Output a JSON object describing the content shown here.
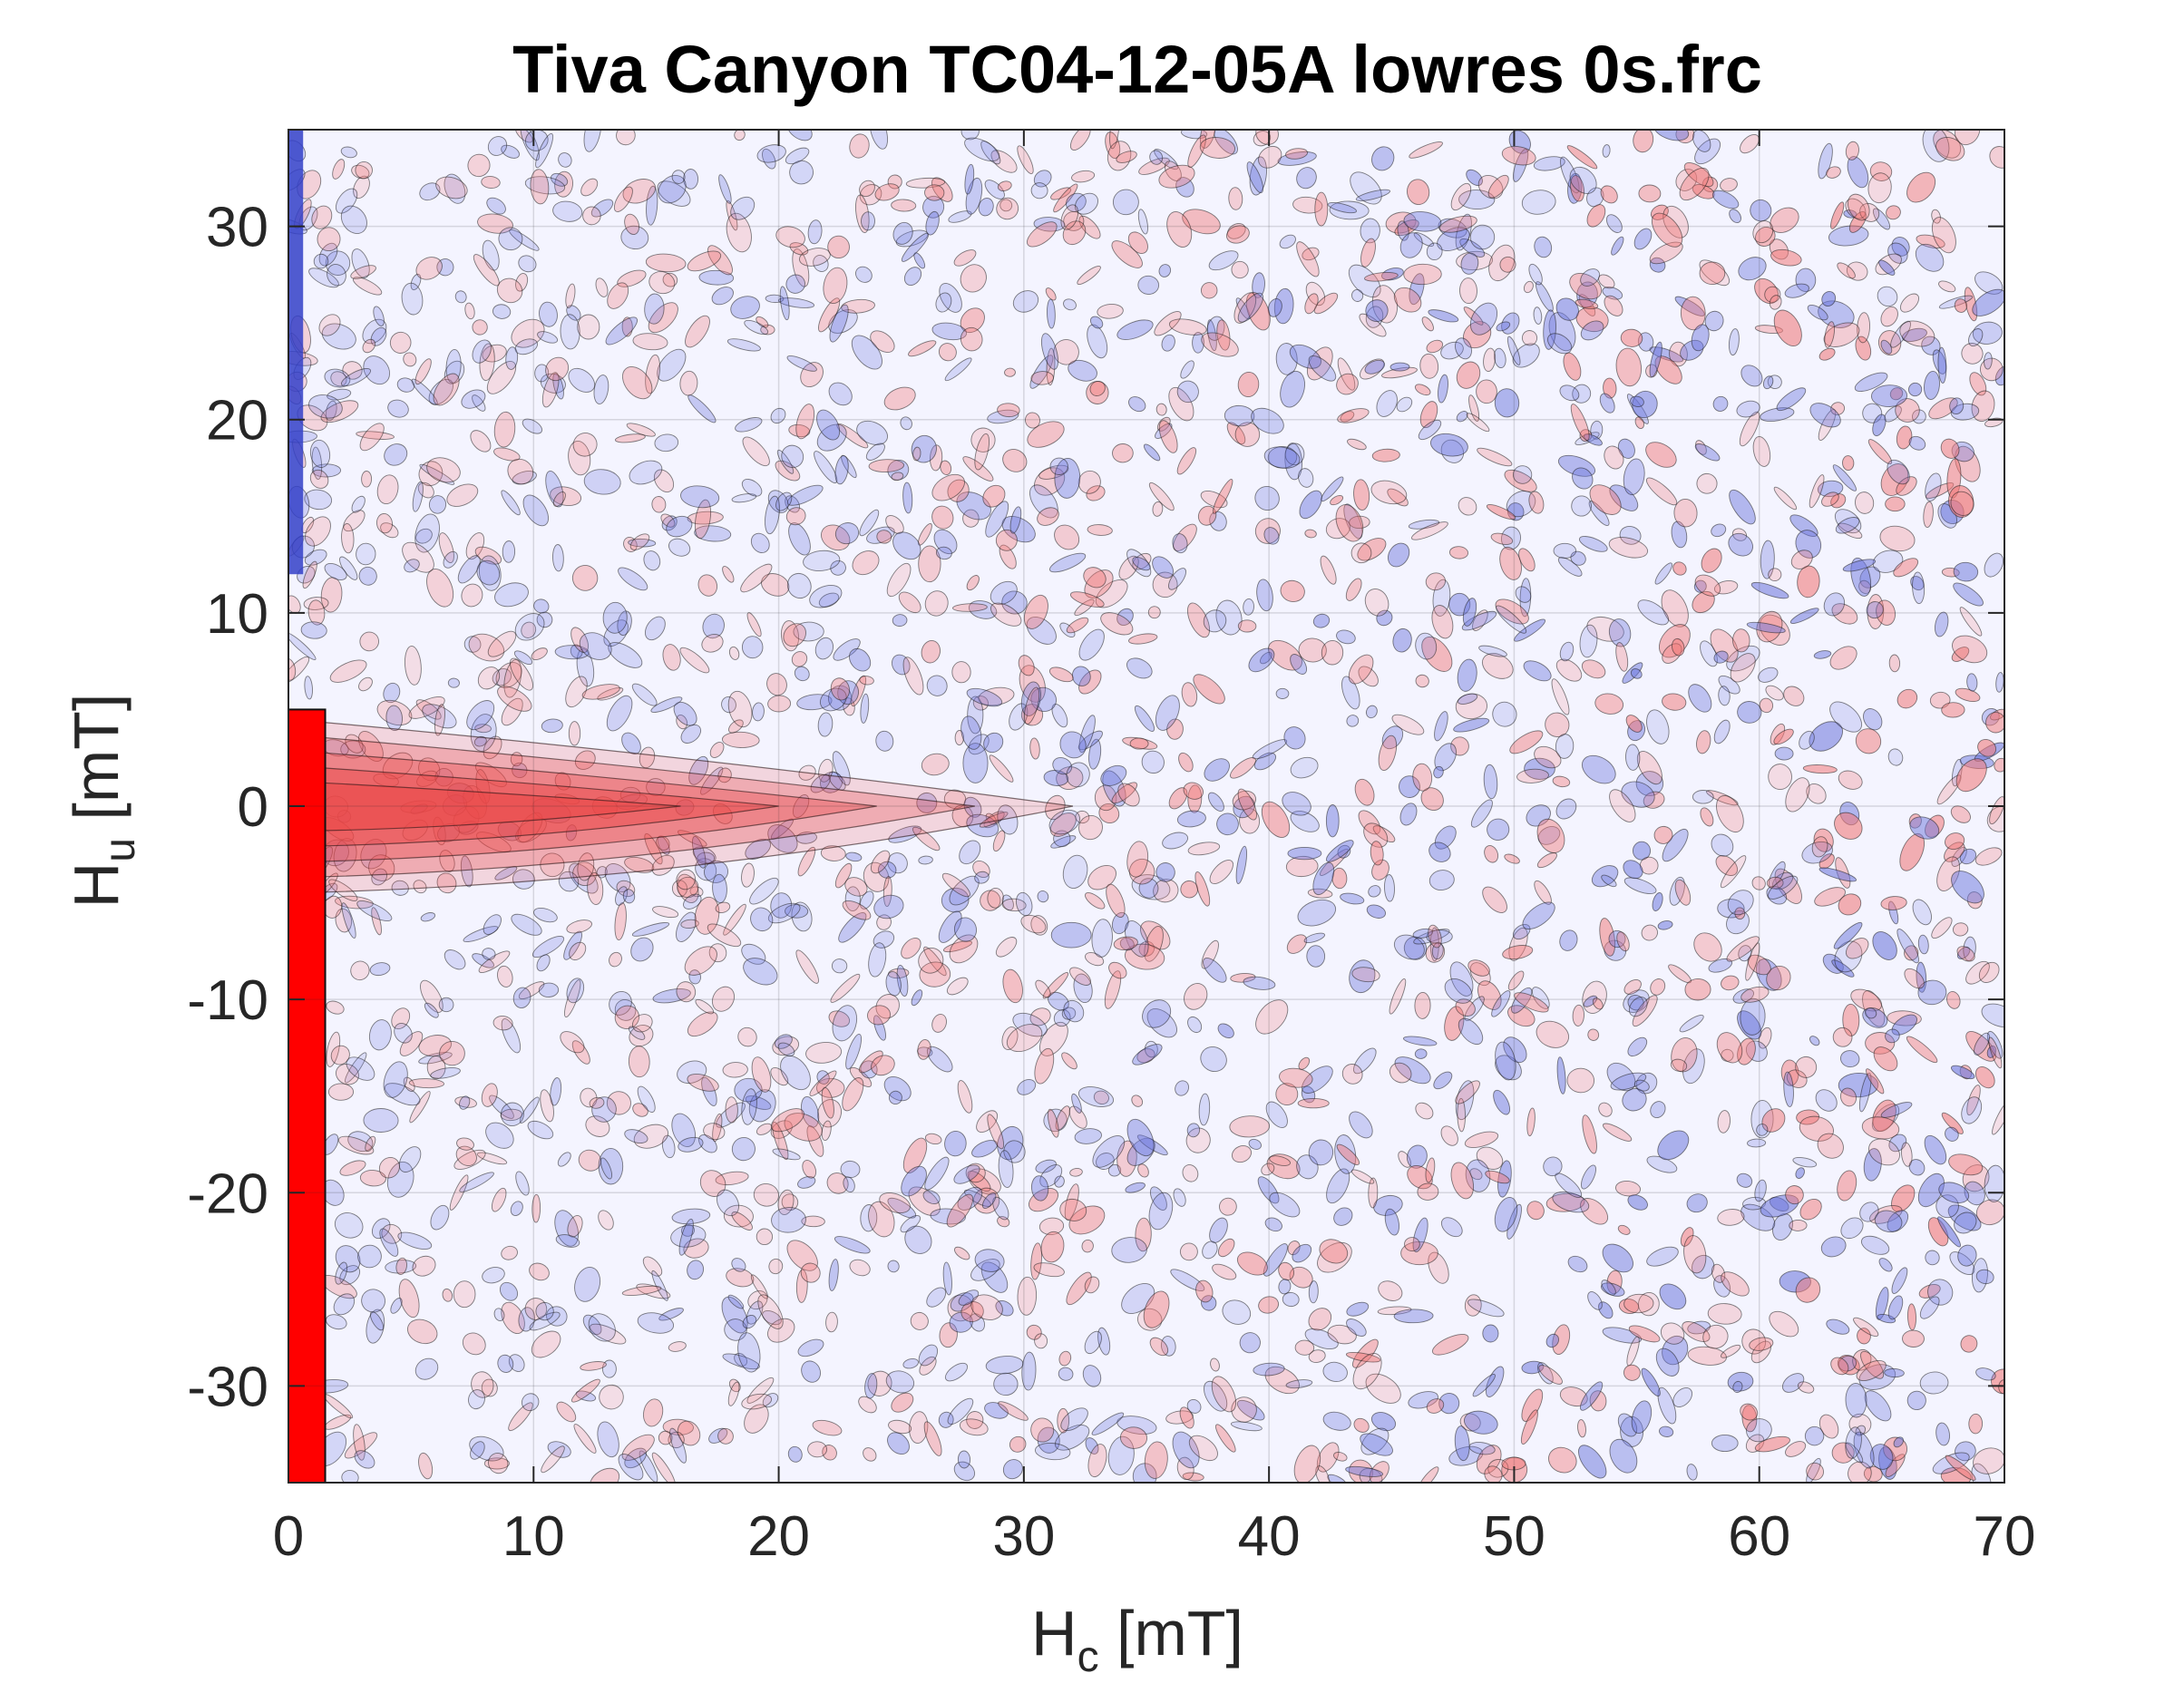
{
  "chart_data": {
    "type": "heatmap",
    "subtype": "filled-contour",
    "title": "Tiva Canyon TC04-12-05A lowres 0s.frc",
    "xlabel": {
      "main": "H",
      "sub": "c",
      "unit": " [mT]"
    },
    "ylabel": {
      "main": "H",
      "sub": "u",
      "unit": " [mT]"
    },
    "xlim": [
      0,
      70
    ],
    "ylim": [
      -35,
      35
    ],
    "x_ticks": [
      0,
      10,
      20,
      30,
      40,
      50,
      60,
      70
    ],
    "x_tick_labels": [
      "0",
      "10",
      "20",
      "30",
      "40",
      "50",
      "60",
      "70"
    ],
    "y_ticks": [
      30,
      20,
      10,
      0,
      -10,
      -20,
      -30
    ],
    "y_tick_labels": [
      "30",
      "20",
      "10",
      "0",
      "-10",
      "-20",
      "-30"
    ],
    "grid": true,
    "colormap": "diverging blue-white-red",
    "colors": {
      "positive_max": "#ff0000",
      "negative_max": "#3340c8",
      "neutral": "#f4f4ff",
      "contour_line": "#222222"
    },
    "features": [
      {
        "description": "saturated positive ridge along Hc near 0",
        "hc": [
          0,
          1.5
        ],
        "hu": [
          -35,
          5
        ],
        "value": 1.0
      },
      {
        "description": "positive central ridge along Hu = 0",
        "hc": [
          0,
          32
        ],
        "hu": 0,
        "value": 0.55
      },
      {
        "description": "negative band at Hc near 0 for high Hu",
        "hc": [
          0,
          0.6
        ],
        "hu": [
          12,
          35
        ],
        "value": -0.8
      }
    ]
  }
}
